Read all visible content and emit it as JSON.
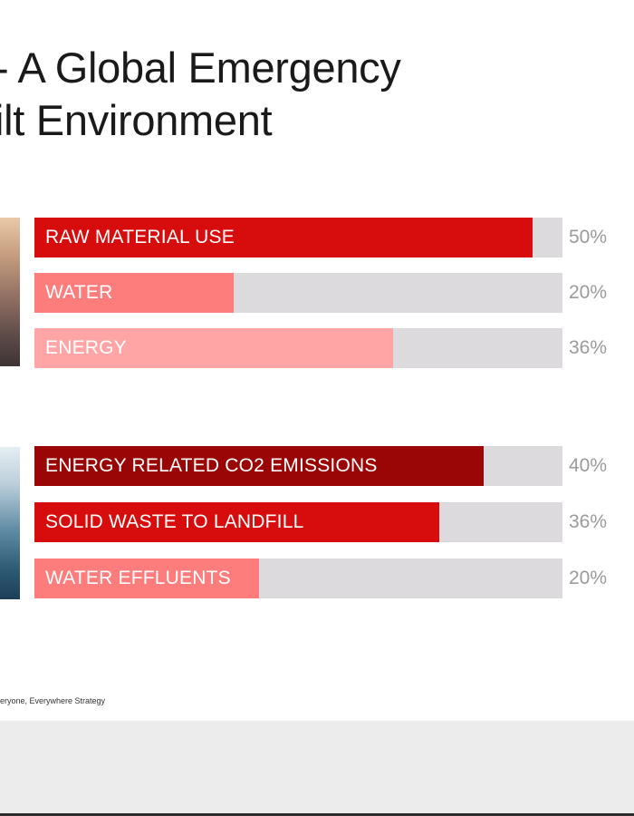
{
  "slide": {
    "title_line1": "- A Global Emergency",
    "title_line2": "ilt Environment",
    "footnote": "eryone, Everywhere Strategy"
  },
  "chart_data": [
    {
      "type": "bar",
      "orientation": "horizontal",
      "categories": [
        "RAW MATERIAL USE",
        "WATER",
        "ENERGY"
      ],
      "values": [
        50,
        20,
        36
      ],
      "value_labels": [
        "50%",
        "20%",
        "36%"
      ],
      "xlim": [
        0,
        53
      ],
      "colors": [
        "#d70c0c",
        "#fd7c7c",
        "#ffa5a5"
      ],
      "track_color": "#dcdadc"
    },
    {
      "type": "bar",
      "orientation": "horizontal",
      "categories": [
        "ENERGY RELATED CO2 EMISSIONS",
        "SOLID WASTE TO LANDFILL",
        "WATER EFFLUENTS"
      ],
      "values": [
        40,
        36,
        20
      ],
      "value_labels": [
        "40%",
        "36%",
        "20%"
      ],
      "xlim": [
        0,
        47
      ],
      "colors": [
        "#9a0505",
        "#d70c0c",
        "#fd7c7c"
      ],
      "track_color": "#dcdadc"
    }
  ]
}
